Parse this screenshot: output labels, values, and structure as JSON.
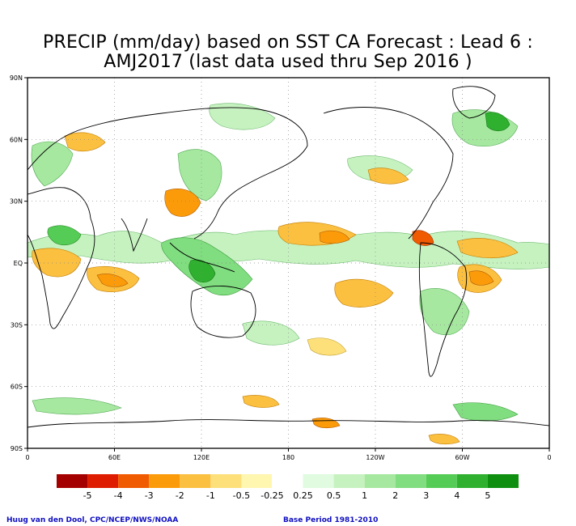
{
  "title": {
    "line1": "PRECIP (mm/day) based on SST CA Forecast : Lead 6 :",
    "line2": "AMJ2017 (last data used thru Sep 2016 )"
  },
  "axes": {
    "lat_labels": [
      "90N",
      "60N",
      "30N",
      "EQ",
      "30S",
      "60S",
      "90S"
    ],
    "lon_labels": [
      "0",
      "60E",
      "120E",
      "180",
      "120W",
      "60W",
      "0"
    ]
  },
  "legend": {
    "labels": [
      "-5",
      "-4",
      "-3",
      "-2",
      "-1",
      "-0.5",
      "-0.25",
      "0.25",
      "0.5",
      "1",
      "2",
      "3",
      "4",
      "5"
    ],
    "colors": [
      "#a50000",
      "#dd1c00",
      "#f05a00",
      "#fb9b0a",
      "#fbc040",
      "#fde07a",
      "#fff6b0",
      "#ffffff",
      "#e0fbe0",
      "#c6f2c0",
      "#a6e8a0",
      "#80dd80",
      "#55cc55",
      "#2fb02f",
      "#0f8f0f"
    ]
  },
  "footer": {
    "left": "Huug van den Dool, CPC/NCEP/NWS/NOAA",
    "right": "Base Period 1981-2010"
  }
}
